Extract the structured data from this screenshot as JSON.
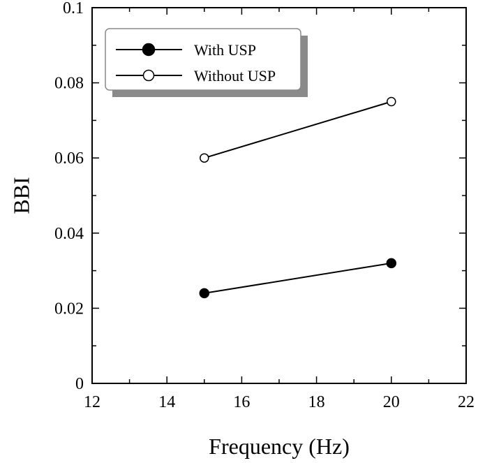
{
  "chart_data": {
    "type": "line",
    "title": "",
    "xlabel": "Frequency (Hz)",
    "ylabel": "BBI",
    "xlim": [
      12,
      22
    ],
    "ylim": [
      0,
      0.1
    ],
    "x_ticks": [
      "12",
      "14",
      "16",
      "18",
      "20",
      "22"
    ],
    "y_ticks": [
      "0",
      "0.02",
      "0.04",
      "0.06",
      "0.08",
      "0.1"
    ],
    "grid": false,
    "legend": "top-left",
    "series": [
      {
        "name": "With USP",
        "marker": "filled-circle",
        "color": "#000000",
        "x": [
          15,
          20
        ],
        "y": [
          0.024,
          0.032
        ]
      },
      {
        "name": "Without USP",
        "marker": "open-circle",
        "color": "#000000",
        "x": [
          15,
          20
        ],
        "y": [
          0.06,
          0.075
        ]
      }
    ]
  }
}
